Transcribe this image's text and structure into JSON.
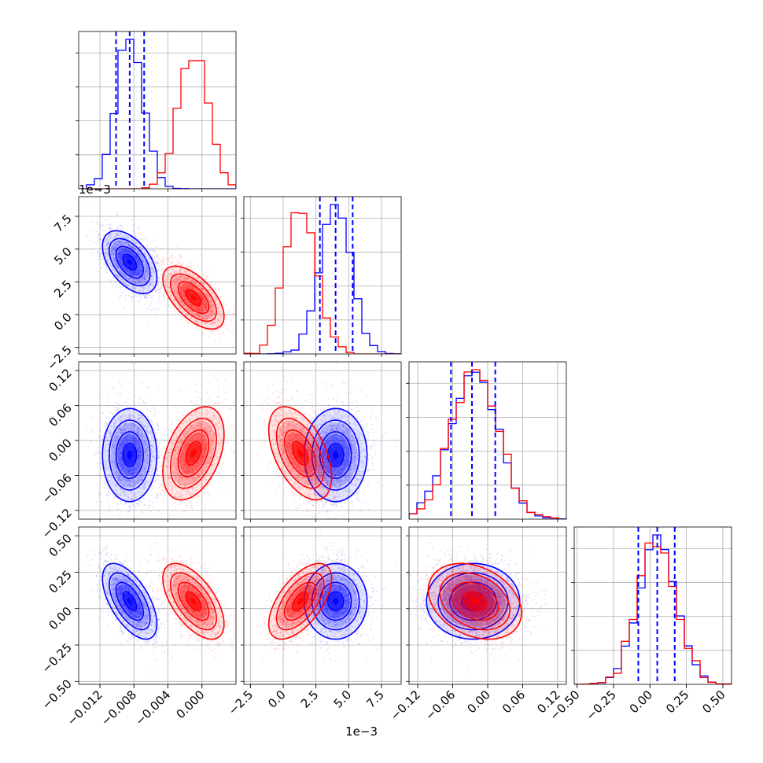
{
  "chart_data": {
    "type": "corner",
    "grid": true,
    "series_colors": [
      "#0000ff",
      "#ff0000"
    ],
    "parameters": [
      {
        "range": [
          -0.0145,
          0.004
        ],
        "ticks": [
          -0.012,
          -0.008,
          -0.004,
          0.0
        ],
        "tick_labels": [
          "−0.012",
          "−0.008",
          "−0.004",
          "0.000"
        ]
      },
      {
        "range": [
          -3.0,
          9.0
        ],
        "ticks": [
          -2.5,
          0.0,
          2.5,
          5.0,
          7.5
        ],
        "tick_labels": [
          "−2.5",
          "0.0",
          "2.5",
          "5.0",
          "7.5"
        ],
        "offset_label": "1e−3"
      },
      {
        "range": [
          -0.135,
          0.135
        ],
        "ticks": [
          -0.12,
          -0.06,
          0.0,
          0.06,
          0.12
        ],
        "tick_labels": [
          "−0.12",
          "−0.06",
          "0.00",
          "0.06",
          "0.12"
        ]
      },
      {
        "range": [
          -0.52,
          0.56
        ],
        "ticks": [
          -0.5,
          -0.25,
          0.0,
          0.25,
          0.5
        ],
        "tick_labels": [
          "−0.50",
          "−0.25",
          "0.00",
          "0.25",
          "0.50"
        ]
      }
    ],
    "series": [
      {
        "color": "#0000ff",
        "means": [
          -0.0085,
          4.0,
          -0.025,
          0.05
        ],
        "sigmas": [
          0.0016,
          1.2,
          0.04,
          0.13
        ],
        "quantiles": [
          [
            -0.0101,
            -0.0085,
            -0.0068
          ],
          [
            2.8,
            4.0,
            5.3
          ],
          [
            -0.063,
            -0.027,
            0.013
          ],
          [
            -0.08,
            0.05,
            0.17
          ]
        ],
        "corr": [
          [
            1,
            -0.5,
            0.0,
            -0.6
          ],
          [
            -0.5,
            1,
            0.0,
            0.0
          ],
          [
            0.0,
            0.0,
            1,
            0.0
          ],
          [
            -0.6,
            0.0,
            0.0,
            1
          ]
        ]
      },
      {
        "color": "#ff0000",
        "means": [
          -0.001,
          1.3,
          -0.022,
          0.05
        ],
        "sigmas": [
          0.0018,
          1.2,
          0.04,
          0.13
        ],
        "corr": [
          [
            1,
            -0.6,
            0.4,
            -0.6
          ],
          [
            -0.6,
            1,
            -0.5,
            0.6
          ],
          [
            0.4,
            -0.5,
            1,
            -0.3
          ],
          [
            -0.6,
            0.6,
            -0.3,
            1
          ]
        ]
      }
    ]
  }
}
